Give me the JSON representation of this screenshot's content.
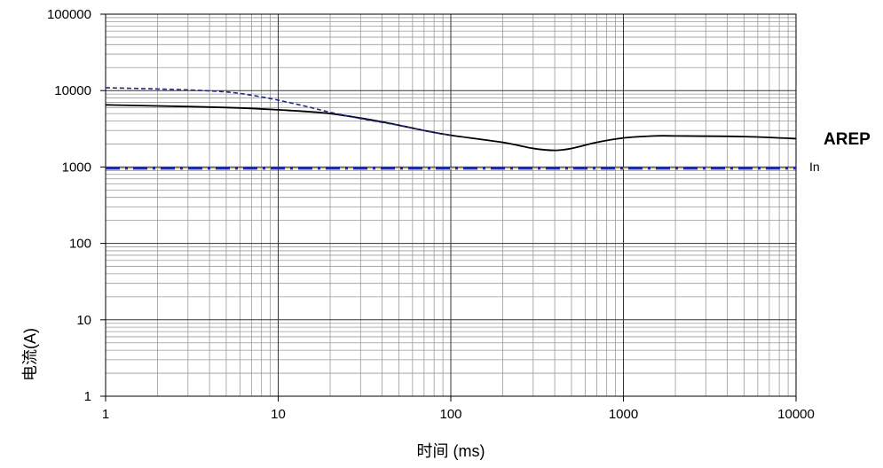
{
  "chart_data": {
    "type": "line",
    "xlabel": "时间 (ms)",
    "ylabel": "电流(A)",
    "xscale": "log",
    "yscale": "log",
    "xlim": [
      1,
      10000
    ],
    "ylim": [
      1,
      100000
    ],
    "x_ticks": [
      "1",
      "10",
      "100",
      "1000",
      "10000"
    ],
    "y_ticks": [
      "1",
      "10",
      "100",
      "1000",
      "10000",
      "100000"
    ],
    "grid": true,
    "series": [
      {
        "name": "AREP",
        "style": "solid",
        "color": "#000000",
        "x": [
          1,
          2,
          5,
          10,
          20,
          40,
          70,
          100,
          200,
          300,
          400,
          500,
          700,
          1000,
          1500,
          2000,
          5000,
          10000
        ],
        "y": [
          6500,
          6300,
          6000,
          5600,
          5000,
          3900,
          3000,
          2600,
          2100,
          1750,
          1650,
          1750,
          2100,
          2400,
          2550,
          2550,
          2500,
          2350
        ]
      },
      {
        "style": "dashed",
        "color": "#1f2a8c",
        "x": [
          1,
          2,
          3,
          5,
          7,
          10,
          15,
          20,
          30,
          50,
          70,
          100
        ],
        "y": [
          10900,
          10500,
          10200,
          9600,
          8700,
          7500,
          6100,
          5200,
          4300,
          3500,
          3000,
          2600
        ]
      },
      {
        "name": "In",
        "style": "dash-dot",
        "color": "#1f2ab5",
        "x": [
          1,
          10000
        ],
        "y": [
          960,
          960
        ]
      }
    ]
  }
}
